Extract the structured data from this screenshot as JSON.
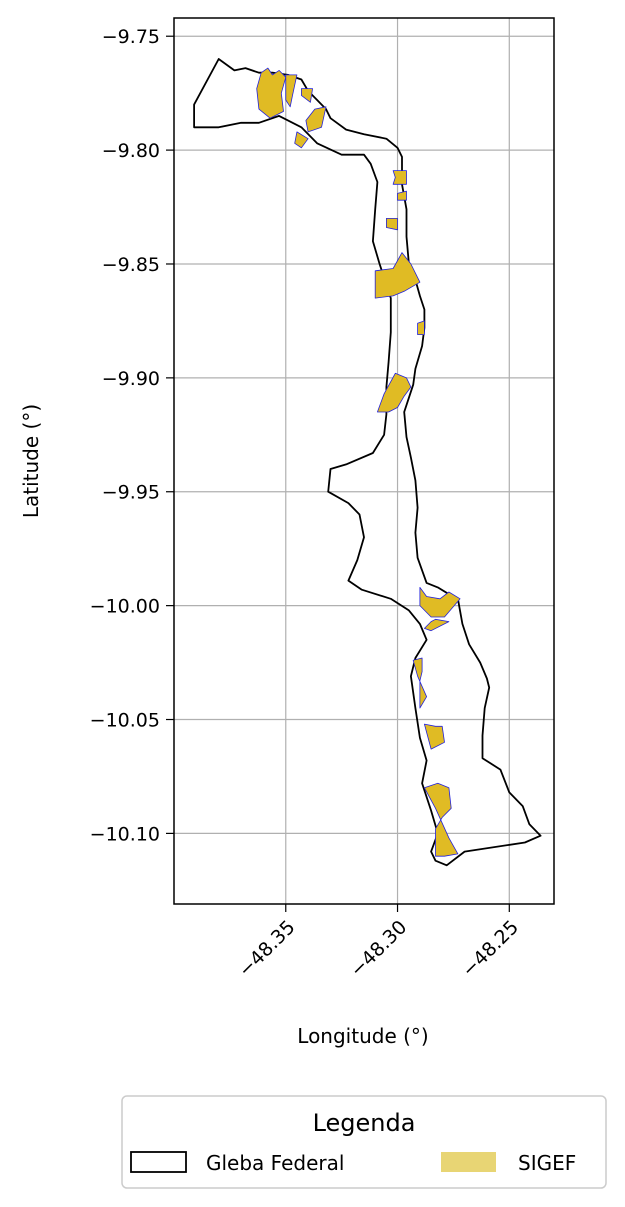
{
  "chart_data": {
    "type": "map",
    "xlabel": "Longitude (°)",
    "ylabel": "Latitude (°)",
    "xlim": [
      -48.4,
      -48.23
    ],
    "ylim": [
      -10.131,
      -9.742
    ],
    "x_ticks": [
      -48.35,
      -48.3,
      -48.25
    ],
    "x_tick_labels": [
      "−48.35",
      "−48.30",
      "−48.25"
    ],
    "y_ticks": [
      -9.75,
      -9.8,
      -9.85,
      -9.9,
      -9.95,
      -10.0,
      -10.05,
      -10.1
    ],
    "y_tick_labels": [
      "−9.75",
      "−9.80",
      "−9.85",
      "−9.90",
      "−9.95",
      "−10.00",
      "−10.05",
      "−10.10"
    ],
    "grid": true,
    "legend": {
      "title": "Legenda",
      "placement": "bottom-center",
      "entries": [
        {
          "label": "Gleba Federal",
          "style": "outline",
          "color": "#000000"
        },
        {
          "label": "SIGEF",
          "style": "fill",
          "color": "#e8d574"
        }
      ]
    },
    "colors": {
      "gleba_outline": "#000000",
      "sigef_fill": "#e0bb24",
      "sigef_edge": "#2222dd",
      "grid": "#b0b0b0"
    },
    "gleba_outline": [
      [
        -48.391,
        -9.78
      ],
      [
        -48.38,
        -9.76
      ],
      [
        -48.373,
        -9.765
      ],
      [
        -48.368,
        -9.764
      ],
      [
        -48.362,
        -9.766
      ],
      [
        -48.356,
        -9.766
      ],
      [
        -48.349,
        -9.767
      ],
      [
        -48.343,
        -9.769
      ],
      [
        -48.34,
        -9.774
      ],
      [
        -48.336,
        -9.778
      ],
      [
        -48.332,
        -9.782
      ],
      [
        -48.33,
        -9.786
      ],
      [
        -48.323,
        -9.791
      ],
      [
        -48.315,
        -9.793
      ],
      [
        -48.305,
        -9.795
      ],
      [
        -48.3,
        -9.799
      ],
      [
        -48.298,
        -9.803
      ],
      [
        -48.298,
        -9.815
      ],
      [
        -48.296,
        -9.826
      ],
      [
        -48.296,
        -9.838
      ],
      [
        -48.295,
        -9.849
      ],
      [
        -48.292,
        -9.857
      ],
      [
        -48.29,
        -9.864
      ],
      [
        -48.288,
        -9.87
      ],
      [
        -48.288,
        -9.878
      ],
      [
        -48.289,
        -9.886
      ],
      [
        -48.292,
        -9.896
      ],
      [
        -48.293,
        -9.903
      ],
      [
        -48.297,
        -9.915
      ],
      [
        -48.296,
        -9.926
      ],
      [
        -48.294,
        -9.935
      ],
      [
        -48.292,
        -9.945
      ],
      [
        -48.291,
        -9.957
      ],
      [
        -48.292,
        -9.968
      ],
      [
        -48.291,
        -9.979
      ],
      [
        -48.287,
        -9.99
      ],
      [
        -48.282,
        -9.992
      ],
      [
        -48.277,
        -9.995
      ],
      [
        -48.273,
        -9.997
      ],
      [
        -48.271,
        -10.008
      ],
      [
        -48.268,
        -10.017
      ],
      [
        -48.263,
        -10.025
      ],
      [
        -48.26,
        -10.032
      ],
      [
        -48.259,
        -10.036
      ],
      [
        -48.261,
        -10.045
      ],
      [
        -48.262,
        -10.057
      ],
      [
        -48.262,
        -10.067
      ],
      [
        -48.254,
        -10.072
      ],
      [
        -48.25,
        -10.082
      ],
      [
        -48.244,
        -10.088
      ],
      [
        -48.241,
        -10.096
      ],
      [
        -48.236,
        -10.101
      ],
      [
        -48.243,
        -10.104
      ],
      [
        -48.27,
        -10.108
      ],
      [
        -48.278,
        -10.114
      ],
      [
        -48.283,
        -10.112
      ],
      [
        -48.285,
        -10.108
      ],
      [
        -48.282,
        -10.1
      ],
      [
        -48.285,
        -10.09
      ],
      [
        -48.289,
        -10.078
      ],
      [
        -48.287,
        -10.068
      ],
      [
        -48.29,
        -10.058
      ],
      [
        -48.292,
        -10.045
      ],
      [
        -48.294,
        -10.031
      ],
      [
        -48.292,
        -10.023
      ],
      [
        -48.287,
        -10.015
      ],
      [
        -48.29,
        -10.008
      ],
      [
        -48.295,
        -10.002
      ],
      [
        -48.303,
        -9.997
      ],
      [
        -48.316,
        -9.993
      ],
      [
        -48.322,
        -9.989
      ],
      [
        -48.318,
        -9.98
      ],
      [
        -48.315,
        -9.97
      ],
      [
        -48.317,
        -9.96
      ],
      [
        -48.322,
        -9.955
      ],
      [
        -48.331,
        -9.95
      ],
      [
        -48.33,
        -9.94
      ],
      [
        -48.323,
        -9.938
      ],
      [
        -48.311,
        -9.933
      ],
      [
        -48.306,
        -9.925
      ],
      [
        -48.305,
        -9.916
      ],
      [
        -48.305,
        -9.904
      ],
      [
        -48.304,
        -9.893
      ],
      [
        -48.303,
        -9.88
      ],
      [
        -48.303,
        -9.865
      ],
      [
        -48.308,
        -9.85
      ],
      [
        -48.311,
        -9.84
      ],
      [
        -48.31,
        -9.826
      ],
      [
        -48.309,
        -9.814
      ],
      [
        -48.312,
        -9.806
      ],
      [
        -48.315,
        -9.802
      ],
      [
        -48.325,
        -9.802
      ],
      [
        -48.336,
        -9.797
      ],
      [
        -48.343,
        -9.79
      ],
      [
        -48.353,
        -9.785
      ],
      [
        -48.362,
        -9.788
      ],
      [
        -48.37,
        -9.788
      ],
      [
        -48.38,
        -9.79
      ],
      [
        -48.391,
        -9.79
      ]
    ],
    "sigef_parcels": [
      [
        [
          -48.358,
          -9.764
        ],
        [
          -48.356,
          -9.767
        ],
        [
          -48.353,
          -9.765
        ],
        [
          -48.35,
          -9.768
        ],
        [
          -48.352,
          -9.775
        ],
        [
          -48.351,
          -9.783
        ],
        [
          -48.357,
          -9.786
        ],
        [
          -48.362,
          -9.782
        ],
        [
          -48.363,
          -9.773
        ],
        [
          -48.361,
          -9.766
        ]
      ],
      [
        [
          -48.35,
          -9.767
        ],
        [
          -48.345,
          -9.767
        ],
        [
          -48.347,
          -9.776
        ],
        [
          -48.348,
          -9.781
        ],
        [
          -48.35,
          -9.778
        ]
      ],
      [
        [
          -48.343,
          -9.773
        ],
        [
          -48.338,
          -9.773
        ],
        [
          -48.339,
          -9.779
        ],
        [
          -48.343,
          -9.776
        ]
      ],
      [
        [
          -48.337,
          -9.782
        ],
        [
          -48.332,
          -9.781
        ],
        [
          -48.334,
          -9.79
        ],
        [
          -48.34,
          -9.792
        ],
        [
          -48.341,
          -9.787
        ]
      ],
      [
        [
          -48.345,
          -9.792
        ],
        [
          -48.34,
          -9.795
        ],
        [
          -48.343,
          -9.799
        ],
        [
          -48.346,
          -9.797
        ]
      ],
      [
        [
          -48.302,
          -9.809
        ],
        [
          -48.296,
          -9.809
        ],
        [
          -48.296,
          -9.815
        ],
        [
          -48.302,
          -9.815
        ],
        [
          -48.301,
          -9.812
        ]
      ],
      [
        [
          -48.3,
          -9.819
        ],
        [
          -48.296,
          -9.818
        ],
        [
          -48.296,
          -9.822
        ],
        [
          -48.3,
          -9.822
        ]
      ],
      [
        [
          -48.305,
          -9.83
        ],
        [
          -48.3,
          -9.83
        ],
        [
          -48.3,
          -9.835
        ],
        [
          -48.305,
          -9.834
        ]
      ],
      [
        [
          -48.298,
          -9.845
        ],
        [
          -48.302,
          -9.852
        ],
        [
          -48.31,
          -9.853
        ],
        [
          -48.31,
          -9.865
        ],
        [
          -48.302,
          -9.864
        ],
        [
          -48.297,
          -9.862
        ],
        [
          -48.29,
          -9.858
        ],
        [
          -48.294,
          -9.85
        ]
      ],
      [
        [
          -48.291,
          -9.876
        ],
        [
          -48.288,
          -9.875
        ],
        [
          -48.288,
          -9.881
        ],
        [
          -48.291,
          -9.881
        ]
      ],
      [
        [
          -48.301,
          -9.898
        ],
        [
          -48.296,
          -9.9
        ],
        [
          -48.294,
          -9.904
        ],
        [
          -48.297,
          -9.908
        ],
        [
          -48.3,
          -9.913
        ],
        [
          -48.304,
          -9.915
        ],
        [
          -48.309,
          -9.915
        ],
        [
          -48.306,
          -9.907
        ]
      ],
      [
        [
          -48.29,
          -9.992
        ],
        [
          -48.287,
          -9.996
        ],
        [
          -48.281,
          -9.997
        ],
        [
          -48.277,
          -9.994
        ],
        [
          -48.272,
          -9.997
        ],
        [
          -48.279,
          -10.005
        ],
        [
          -48.285,
          -10.005
        ],
        [
          -48.29,
          -10.0
        ]
      ],
      [
        [
          -48.283,
          -10.006
        ],
        [
          -48.277,
          -10.007
        ],
        [
          -48.285,
          -10.011
        ],
        [
          -48.288,
          -10.01
        ],
        [
          -48.285,
          -10.007
        ]
      ],
      [
        [
          -48.293,
          -10.024
        ],
        [
          -48.289,
          -10.023
        ],
        [
          -48.289,
          -10.029
        ],
        [
          -48.29,
          -10.033
        ],
        [
          -48.29,
          -10.045
        ],
        [
          -48.287,
          -10.04
        ],
        [
          -48.291,
          -10.031
        ]
      ],
      [
        [
          -48.283,
          -10.053
        ],
        [
          -48.288,
          -10.052
        ],
        [
          -48.285,
          -10.063
        ],
        [
          -48.279,
          -10.06
        ],
        [
          -48.28,
          -10.053
        ]
      ],
      [
        [
          -48.288,
          -10.08
        ],
        [
          -48.282,
          -10.078
        ],
        [
          -48.277,
          -10.08
        ],
        [
          -48.276,
          -10.089
        ],
        [
          -48.28,
          -10.093
        ],
        [
          -48.283,
          -10.098
        ],
        [
          -48.283,
          -10.11
        ],
        [
          -48.279,
          -10.11
        ],
        [
          -48.273,
          -10.109
        ],
        [
          -48.277,
          -10.102
        ],
        [
          -48.283,
          -10.089
        ]
      ]
    ]
  }
}
